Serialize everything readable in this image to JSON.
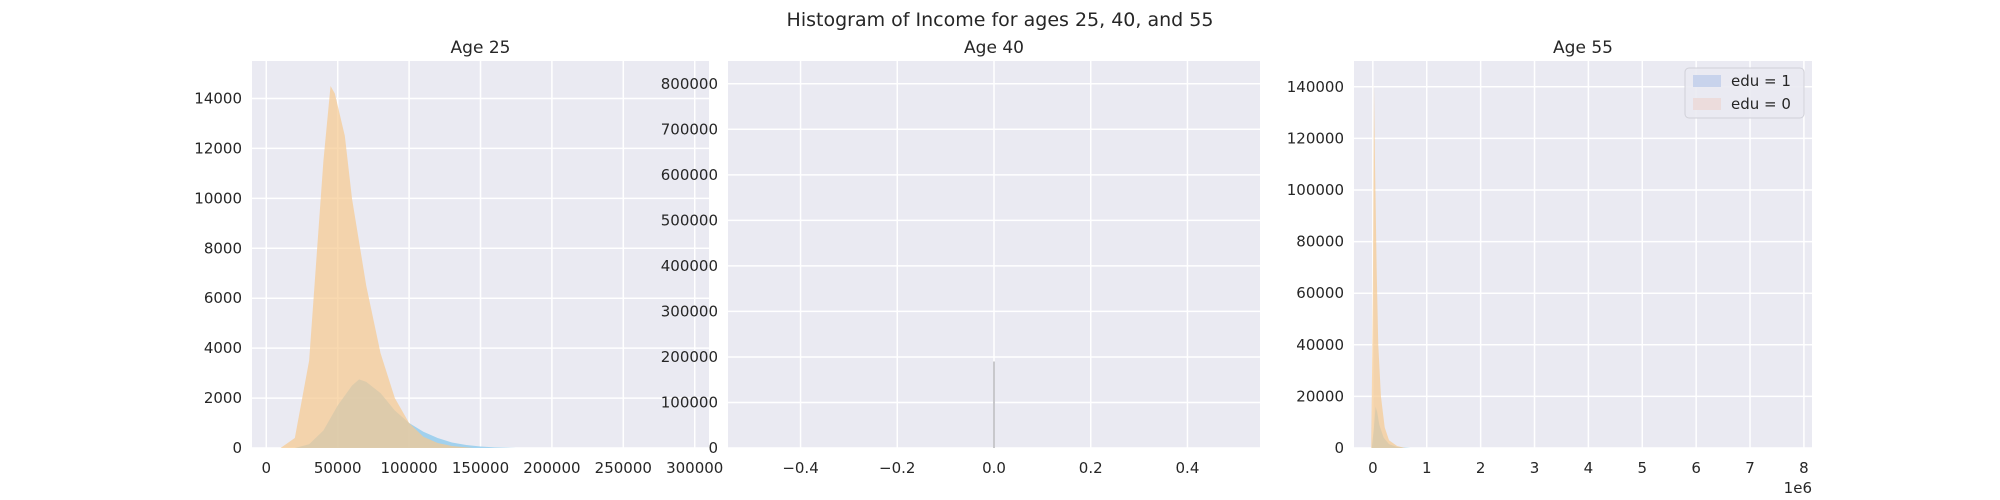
{
  "chart_data": {
    "type": "histogram",
    "title": "Histogram of Income for ages 25, 40, and 55",
    "colors": {
      "edu1": "#8fcbec",
      "edu0": "#f7c98f",
      "legend_edu1": "#c8d3ec",
      "legend_edu0": "#ecdcdc",
      "age40_bar": "#c8c8cc"
    },
    "legend": {
      "placement": "upper-right of Age 55 panel",
      "entries": [
        {
          "label": "edu = 1"
        },
        {
          "label": "edu = 0"
        }
      ]
    },
    "subplots": [
      {
        "title": "Age 25",
        "xlim": [
          -10000,
          310000
        ],
        "ylim": [
          0,
          15500
        ],
        "xticks": [
          0,
          50000,
          100000,
          150000,
          200000,
          250000,
          300000
        ],
        "xtick_labels": [
          "0",
          "50000",
          "100000",
          "150000",
          "200000",
          "250000",
          "300000"
        ],
        "yticks": [
          0,
          2000,
          4000,
          6000,
          8000,
          10000,
          12000,
          14000
        ],
        "ytick_labels": [
          "0",
          "2000",
          "4000",
          "6000",
          "8000",
          "10000",
          "12000",
          "14000"
        ],
        "x_offset_label": "",
        "series": [
          {
            "name": "edu = 1",
            "curve": [
              [
                20000,
                0
              ],
              [
                30000,
                150
              ],
              [
                40000,
                700
              ],
              [
                50000,
                1700
              ],
              [
                60000,
                2500
              ],
              [
                65000,
                2750
              ],
              [
                70000,
                2650
              ],
              [
                80000,
                2200
              ],
              [
                90000,
                1500
              ],
              [
                100000,
                1000
              ],
              [
                110000,
                650
              ],
              [
                120000,
                400
              ],
              [
                130000,
                220
              ],
              [
                140000,
                120
              ],
              [
                150000,
                60
              ],
              [
                160000,
                25
              ],
              [
                175000,
                0
              ]
            ]
          },
          {
            "name": "edu = 0",
            "curve": [
              [
                10000,
                0
              ],
              [
                20000,
                400
              ],
              [
                30000,
                3500
              ],
              [
                35000,
                7500
              ],
              [
                40000,
                11500
              ],
              [
                45000,
                14500
              ],
              [
                48000,
                14200
              ],
              [
                55000,
                12500
              ],
              [
                60000,
                10000
              ],
              [
                70000,
                6500
              ],
              [
                80000,
                3800
              ],
              [
                90000,
                2000
              ],
              [
                100000,
                1000
              ],
              [
                110000,
                450
              ],
              [
                120000,
                200
              ],
              [
                130000,
                80
              ],
              [
                145000,
                0
              ]
            ]
          }
        ]
      },
      {
        "title": "Age 40",
        "xlim": [
          -0.55,
          0.55
        ],
        "ylim": [
          0,
          850000
        ],
        "xticks": [
          -0.4,
          -0.2,
          0.0,
          0.2,
          0.4
        ],
        "xtick_labels": [
          "−0.4",
          "−0.2",
          "0.0",
          "0.2",
          "0.4"
        ],
        "yticks": [
          0,
          100000,
          200000,
          300000,
          400000,
          500000,
          600000,
          700000,
          800000
        ],
        "ytick_labels": [
          "0",
          "100000",
          "200000",
          "300000",
          "400000",
          "500000",
          "600000",
          "700000",
          "800000"
        ],
        "x_offset_label": "",
        "bars": [
          {
            "x": 0.0,
            "value": 190000
          }
        ]
      },
      {
        "title": "Age 55",
        "xlim": [
          -0.35,
          8.15
        ],
        "ylim": [
          0,
          150000
        ],
        "xticks": [
          0,
          1,
          2,
          3,
          4,
          5,
          6,
          7,
          8
        ],
        "xtick_labels": [
          "0",
          "1",
          "2",
          "3",
          "4",
          "5",
          "6",
          "7",
          "8"
        ],
        "yticks": [
          0,
          20000,
          40000,
          60000,
          80000,
          100000,
          120000,
          140000
        ],
        "ytick_labels": [
          "0",
          "20000",
          "40000",
          "60000",
          "80000",
          "100000",
          "120000",
          "140000"
        ],
        "x_offset_label": "1e6",
        "series": [
          {
            "name": "edu = 1",
            "curve": [
              [
                -0.02,
                0
              ],
              [
                0.02,
                8000
              ],
              [
                0.05,
                16000
              ],
              [
                0.08,
                14000
              ],
              [
                0.12,
                9000
              ],
              [
                0.2,
                4000
              ],
              [
                0.3,
                1500
              ],
              [
                0.45,
                400
              ],
              [
                0.7,
                0
              ]
            ]
          },
          {
            "name": "edu = 0",
            "curve": [
              [
                -0.03,
                0
              ],
              [
                0.0,
                60000
              ],
              [
                0.02,
                142000
              ],
              [
                0.04,
                110000
              ],
              [
                0.07,
                70000
              ],
              [
                0.1,
                40000
              ],
              [
                0.15,
                20000
              ],
              [
                0.22,
                8000
              ],
              [
                0.3,
                3000
              ],
              [
                0.45,
                800
              ],
              [
                0.6,
                0
              ]
            ]
          }
        ]
      }
    ]
  }
}
